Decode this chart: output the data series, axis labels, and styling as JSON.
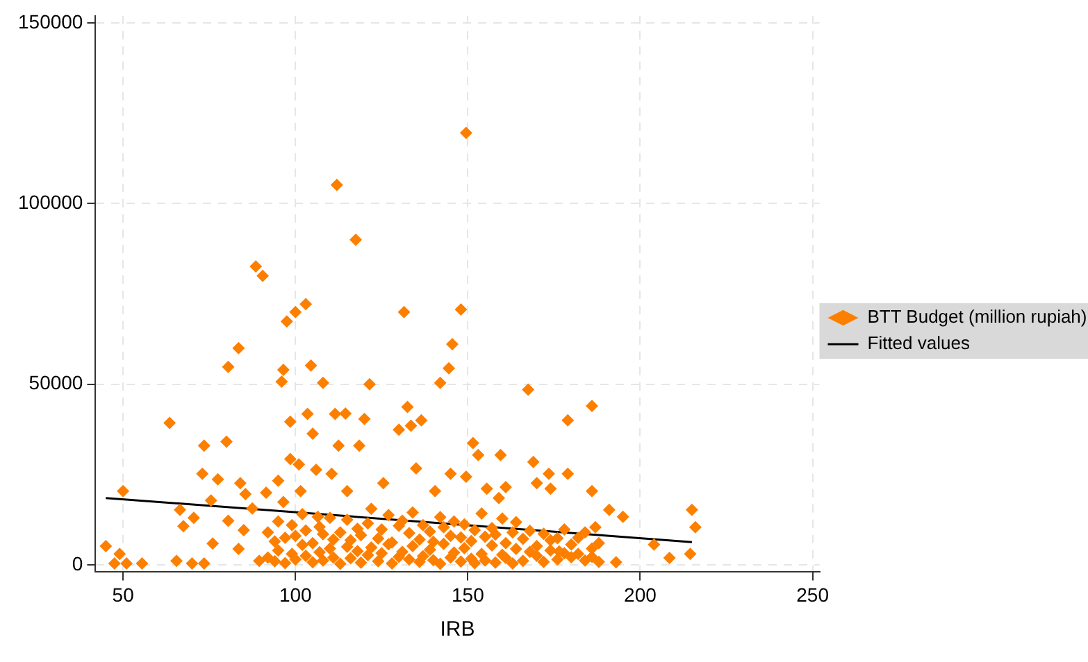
{
  "chart_data": {
    "type": "scatter",
    "xlabel": "IRB",
    "xlim": [
      42,
      252
    ],
    "ylim": [
      -2000,
      152000
    ],
    "xticks": [
      50,
      100,
      150,
      200,
      250
    ],
    "yticks": [
      0,
      50000,
      100000,
      150000
    ],
    "grid": true,
    "legend": "right",
    "series": [
      {
        "name": "BTT Budget (million rupiah)",
        "color": "#fd7f00",
        "marker": "diamond",
        "x": [
          149.5,
          112,
          117.5,
          88.5,
          90.5,
          97.5,
          100,
          103,
          131.5,
          148,
          145.5,
          83.5,
          80.5,
          96.5,
          104.5,
          144.5,
          96,
          108,
          121.5,
          142,
          167.5,
          186,
          132.5,
          103.5,
          111.5,
          114.5,
          120,
          98.5,
          179,
          136.5,
          133.5,
          130,
          63.5,
          105,
          80,
          73.5,
          151.5,
          112.5,
          118.5,
          153,
          159.5,
          98.5,
          101,
          169,
          106,
          110.5,
          73,
          135,
          145,
          149.5,
          173.5,
          179,
          77.5,
          95,
          84,
          125.5,
          170,
          155.5,
          161,
          174,
          50,
          101.5,
          115,
          140.5,
          186,
          85.5,
          91.5,
          75.5,
          96.5,
          159,
          191,
          215,
          66.5,
          87.5,
          195,
          70.5,
          80.5,
          106.5,
          67.5,
          216,
          187,
          85,
          76,
          204,
          176.5,
          214.5,
          208.5,
          193,
          45,
          49,
          47.5,
          51,
          55.5,
          65.5,
          70,
          73.5,
          83.5,
          89.5,
          92,
          92,
          94,
          94,
          95,
          95,
          97,
          97,
          99,
          99,
          100,
          100,
          102,
          102,
          103,
          103,
          105,
          105,
          107,
          107,
          108,
          108,
          110,
          110,
          111,
          111,
          113,
          113,
          115,
          115,
          116,
          116,
          118,
          118,
          119,
          119,
          121,
          121,
          122,
          122,
          124,
          124,
          125,
          125,
          127,
          127,
          128,
          128,
          130,
          130,
          131,
          131,
          133,
          133,
          134,
          134,
          136,
          136,
          137,
          137,
          139,
          139,
          140,
          140,
          142,
          142,
          143,
          143,
          145,
          145,
          146,
          146,
          148,
          148,
          149,
          149,
          151,
          151,
          152,
          152,
          154,
          154,
          155,
          155,
          157,
          157,
          158,
          158,
          160,
          160,
          161,
          161,
          163,
          163,
          164,
          164,
          166,
          166,
          168,
          168,
          170,
          170,
          172,
          172,
          174,
          174,
          176,
          176,
          178,
          178,
          180,
          180,
          182,
          182,
          184,
          184,
          186,
          186,
          188,
          188
        ],
        "values": [
          119600,
          105200,
          90000,
          82600,
          80000,
          67400,
          70000,
          72200,
          70000,
          70700,
          61100,
          60000,
          54800,
          54000,
          55200,
          54400,
          50700,
          50400,
          50000,
          50400,
          48500,
          44000,
          43700,
          41800,
          41800,
          41900,
          40400,
          39600,
          40000,
          40000,
          38500,
          37400,
          39300,
          36300,
          34100,
          33000,
          33700,
          33000,
          33000,
          30400,
          30400,
          29300,
          27800,
          28500,
          26300,
          25200,
          25200,
          26700,
          25200,
          24400,
          25200,
          25200,
          23700,
          23300,
          22600,
          22600,
          22600,
          21100,
          21500,
          21100,
          20400,
          20400,
          20400,
          20400,
          20400,
          19600,
          20000,
          17800,
          17400,
          18500,
          15200,
          15200,
          15200,
          15600,
          13300,
          13000,
          12200,
          13300,
          10700,
          10400,
          10400,
          9600,
          5900,
          5600,
          3700,
          3000,
          1900,
          700,
          5200,
          3000,
          400,
          400,
          400,
          1100,
          400,
          400,
          4400,
          1100,
          2000,
          9000,
          6500,
          1000,
          4000,
          12000,
          500,
          7500,
          3000,
          11000,
          8000,
          1500,
          5500,
          14000,
          2500,
          9500,
          6000,
          700,
          10500,
          3500,
          1200,
          8500,
          4500,
          13000,
          2000,
          7000,
          9000,
          300,
          5000,
          12500,
          1800,
          6800,
          3800,
          10000,
          600,
          8200,
          11500,
          2700,
          4800,
          15500,
          1000,
          7300,
          9800,
          3200,
          5700,
          13800,
          400,
          6200,
          10800,
          2200,
          3600,
          12200,
          1500,
          8800,
          5200,
          14500,
          800,
          7000,
          11000,
          2400,
          4200,
          9200,
          1300,
          6400,
          13200,
          300,
          5800,
          10400,
          2000,
          8000,
          3400,
          12000,
          900,
          7600,
          4600,
          11200,
          1700,
          6600,
          9600,
          500,
          3000,
          14200,
          1200,
          7800,
          5400,
          10200,
          600,
          8400,
          2800,
          12800,
          1900,
          6000,
          9000,
          400,
          4400,
          11800,
          1100,
          7200,
          3600,
          9400,
          2500,
          5200,
          800,
          8600,
          4000,
          6800,
          1500,
          7400,
          3200,
          9800,
          2100,
          5600,
          3000,
          7500,
          1200,
          9000,
          4500,
          2200,
          6000,
          800
        ]
      },
      {
        "name": "Fitted values",
        "color": "#000000",
        "type": "line",
        "marker": "none",
        "x": [
          45,
          215
        ],
        "values": [
          18500,
          6300
        ]
      }
    ]
  }
}
